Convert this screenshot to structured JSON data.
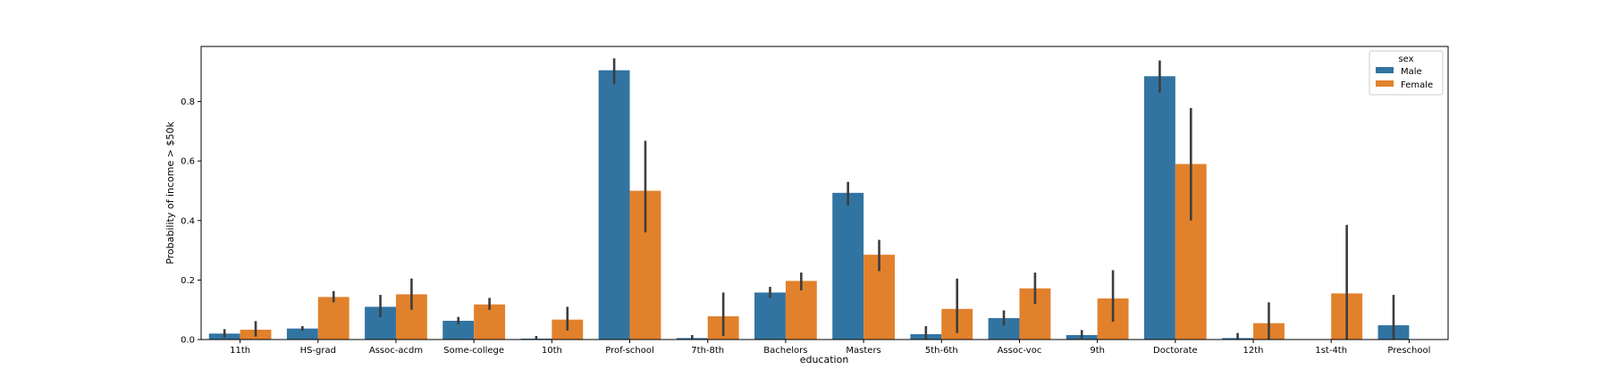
{
  "chart_data": {
    "type": "bar",
    "xlabel": "education",
    "ylabel": "Probability of income > $50k",
    "ylim": [
      0,
      0.985
    ],
    "yticks": [
      "0.0",
      "0.2",
      "0.4",
      "0.6",
      "0.8"
    ],
    "ytick_values": [
      0,
      0.2,
      0.4,
      0.6,
      0.8
    ],
    "legend": {
      "title": "sex",
      "position": "top-right"
    },
    "categories": [
      "11th",
      "HS-grad",
      "Assoc-acdm",
      "Some-college",
      "10th",
      "Prof-school",
      "7th-8th",
      "Bachelors",
      "Masters",
      "5th-6th",
      "Assoc-voc",
      "9th",
      "Doctorate",
      "12th",
      "1st-4th",
      "Preschool"
    ],
    "series": [
      {
        "name": "Male",
        "color": "#3274a1",
        "values": [
          0.02,
          0.037,
          0.11,
          0.063,
          0.003,
          0.905,
          0.005,
          0.158,
          0.493,
          0.018,
          0.072,
          0.015,
          0.885,
          0.005,
          0.0,
          0.048
        ],
        "err_low": [
          0.007,
          0.03,
          0.075,
          0.052,
          0.0,
          0.858,
          0.0,
          0.14,
          0.45,
          0.0,
          0.047,
          0.003,
          0.83,
          0.0,
          0.0,
          0.0
        ],
        "err_high": [
          0.035,
          0.045,
          0.15,
          0.076,
          0.012,
          0.945,
          0.015,
          0.177,
          0.53,
          0.045,
          0.098,
          0.032,
          0.938,
          0.022,
          0.0,
          0.15
        ]
      },
      {
        "name": "Female",
        "color": "#e1812c",
        "values": [
          0.033,
          0.143,
          0.152,
          0.118,
          0.067,
          0.5,
          0.078,
          0.197,
          0.285,
          0.103,
          0.172,
          0.138,
          0.59,
          0.055,
          0.155,
          0.0
        ],
        "err_low": [
          0.01,
          0.125,
          0.1,
          0.1,
          0.03,
          0.36,
          0.012,
          0.165,
          0.23,
          0.022,
          0.12,
          0.06,
          0.4,
          0.0,
          0.0,
          0.0
        ],
        "err_high": [
          0.062,
          0.163,
          0.205,
          0.14,
          0.11,
          0.668,
          0.158,
          0.225,
          0.335,
          0.205,
          0.225,
          0.233,
          0.778,
          0.125,
          0.385,
          0.0
        ]
      }
    ]
  }
}
